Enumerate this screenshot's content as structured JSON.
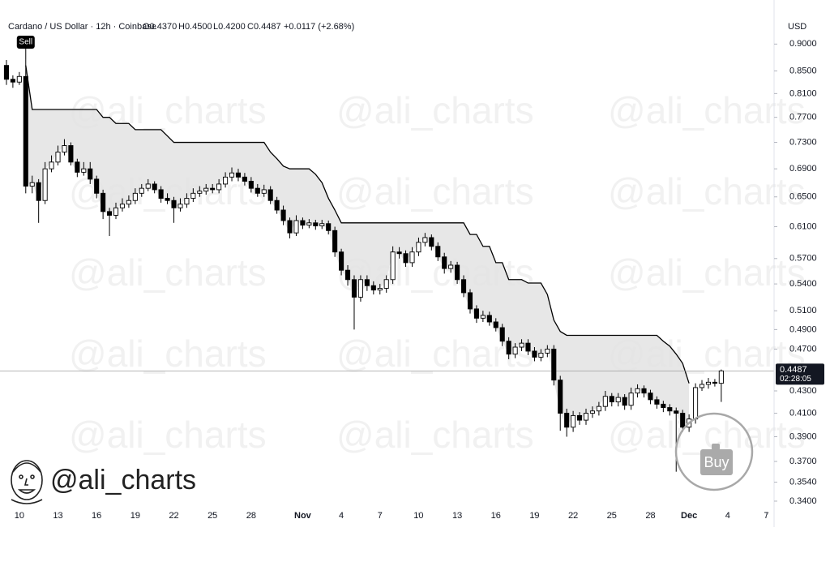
{
  "chart_data": {
    "type": "candlestick",
    "title": "Cardano / US Dollar · 12h · Coinbase",
    "ohlc": [
      "O0.4370",
      "H0.4500",
      "L0.4200",
      "C0.4487"
    ],
    "change": "+0.0117 (+2.68%)",
    "currency": "USD",
    "watermark": "@ali_charts",
    "x": [
      -1,
      -0.5,
      0,
      0.5,
      1,
      1.5,
      2,
      2.5,
      3,
      3.5,
      4,
      4.5,
      5,
      5.5,
      6,
      6.5,
      7,
      7.5,
      8,
      8.5,
      9,
      9.5,
      10,
      10.5,
      11,
      11.5,
      12,
      12.5,
      13,
      13.5,
      14,
      14.5,
      15,
      15.5,
      16,
      16.5,
      17,
      17.5,
      18,
      18.5,
      19,
      19.5,
      20,
      20.5,
      21,
      21.5,
      22,
      22.5,
      23,
      23.5,
      24,
      24.5,
      25,
      25.5,
      26,
      26.5,
      27,
      27.5,
      28,
      28.5,
      29,
      29.5,
      30,
      30.5,
      31,
      31.5,
      32,
      32.5,
      33,
      33.5,
      34,
      34.5,
      35,
      35.5,
      36,
      36.5,
      37,
      37.5,
      38,
      38.5,
      39,
      39.5,
      40,
      40.5,
      41,
      41.5,
      42,
      42.5,
      43,
      43.5,
      44,
      44.5,
      45,
      45.5,
      46,
      46.5,
      47,
      47.5,
      48,
      48.5,
      49,
      49.5,
      50,
      50.5,
      51,
      51.5,
      52,
      52.5,
      53,
      53.5,
      54,
      54.5
    ],
    "open": [
      0.86,
      0.835,
      0.83,
      0.84,
      0.665,
      0.67,
      0.645,
      0.69,
      0.7,
      0.715,
      0.725,
      0.7,
      0.685,
      0.69,
      0.675,
      0.655,
      0.63,
      0.625,
      0.635,
      0.64,
      0.645,
      0.655,
      0.662,
      0.668,
      0.66,
      0.648,
      0.645,
      0.635,
      0.64,
      0.648,
      0.655,
      0.658,
      0.662,
      0.66,
      0.668,
      0.678,
      0.684,
      0.678,
      0.672,
      0.662,
      0.655,
      0.66,
      0.645,
      0.632,
      0.618,
      0.602,
      0.618,
      0.612,
      0.615,
      0.611,
      0.614,
      0.605,
      0.578,
      0.556,
      0.545,
      0.525,
      0.545,
      0.538,
      0.533,
      0.535,
      0.545,
      0.578,
      0.576,
      0.565,
      0.578,
      0.59,
      0.596,
      0.585,
      0.572,
      0.558,
      0.562,
      0.545,
      0.53,
      0.512,
      0.502,
      0.505,
      0.498,
      0.492,
      0.478,
      0.465,
      0.472,
      0.476,
      0.468,
      0.462,
      0.466,
      0.47,
      0.44,
      0.41,
      0.398,
      0.408,
      0.404,
      0.41,
      0.412,
      0.416,
      0.425,
      0.42,
      0.424,
      0.417,
      0.428,
      0.432,
      0.428,
      0.422,
      0.418,
      0.415,
      0.412,
      0.41,
      0.398,
      0.405,
      0.433,
      0.436,
      0.438,
      0.437
    ],
    "high": [
      0.87,
      0.842,
      0.848,
      0.87,
      0.68,
      0.675,
      0.7,
      0.71,
      0.725,
      0.735,
      0.73,
      0.705,
      0.7,
      0.7,
      0.68,
      0.66,
      0.635,
      0.642,
      0.648,
      0.652,
      0.662,
      0.668,
      0.675,
      0.672,
      0.665,
      0.655,
      0.65,
      0.648,
      0.655,
      0.662,
      0.665,
      0.668,
      0.668,
      0.675,
      0.685,
      0.692,
      0.69,
      0.684,
      0.678,
      0.668,
      0.667,
      0.665,
      0.65,
      0.638,
      0.622,
      0.625,
      0.622,
      0.62,
      0.619,
      0.619,
      0.618,
      0.61,
      0.582,
      0.562,
      0.55,
      0.55,
      0.55,
      0.543,
      0.54,
      0.55,
      0.585,
      0.584,
      0.58,
      0.584,
      0.596,
      0.602,
      0.6,
      0.59,
      0.577,
      0.567,
      0.566,
      0.55,
      0.534,
      0.516,
      0.51,
      0.509,
      0.502,
      0.496,
      0.482,
      0.476,
      0.48,
      0.48,
      0.472,
      0.47,
      0.474,
      0.474,
      0.444,
      0.414,
      0.412,
      0.411,
      0.414,
      0.416,
      0.42,
      0.43,
      0.428,
      0.428,
      0.427,
      0.433,
      0.436,
      0.435,
      0.431,
      0.425,
      0.421,
      0.418,
      0.415,
      0.413,
      0.409,
      0.437,
      0.44,
      0.442,
      0.441,
      0.45
    ],
    "low": [
      0.825,
      0.82,
      0.825,
      0.655,
      0.655,
      0.615,
      0.64,
      0.685,
      0.695,
      0.71,
      0.695,
      0.678,
      0.68,
      0.668,
      0.648,
      0.62,
      0.598,
      0.62,
      0.63,
      0.635,
      0.64,
      0.65,
      0.658,
      0.655,
      0.642,
      0.64,
      0.615,
      0.63,
      0.635,
      0.643,
      0.65,
      0.653,
      0.655,
      0.655,
      0.663,
      0.672,
      0.672,
      0.666,
      0.656,
      0.65,
      0.65,
      0.64,
      0.627,
      0.612,
      0.595,
      0.598,
      0.607,
      0.608,
      0.606,
      0.607,
      0.6,
      0.572,
      0.55,
      0.538,
      0.49,
      0.52,
      0.532,
      0.528,
      0.528,
      0.53,
      0.54,
      0.57,
      0.56,
      0.56,
      0.573,
      0.585,
      0.58,
      0.567,
      0.552,
      0.553,
      0.54,
      0.525,
      0.507,
      0.497,
      0.498,
      0.494,
      0.488,
      0.473,
      0.46,
      0.461,
      0.468,
      0.464,
      0.458,
      0.458,
      0.462,
      0.435,
      0.395,
      0.39,
      0.394,
      0.4,
      0.4,
      0.406,
      0.408,
      0.412,
      0.416,
      0.416,
      0.413,
      0.413,
      0.424,
      0.424,
      0.418,
      0.414,
      0.411,
      0.408,
      0.362,
      0.394,
      0.394,
      0.401,
      0.43,
      0.432,
      0.434,
      0.42
    ],
    "close": [
      0.835,
      0.83,
      0.84,
      0.665,
      0.67,
      0.645,
      0.69,
      0.7,
      0.715,
      0.725,
      0.7,
      0.685,
      0.69,
      0.675,
      0.655,
      0.63,
      0.625,
      0.635,
      0.64,
      0.645,
      0.655,
      0.662,
      0.668,
      0.66,
      0.648,
      0.645,
      0.635,
      0.64,
      0.648,
      0.655,
      0.658,
      0.662,
      0.66,
      0.668,
      0.678,
      0.684,
      0.678,
      0.672,
      0.662,
      0.655,
      0.66,
      0.645,
      0.632,
      0.618,
      0.602,
      0.618,
      0.612,
      0.615,
      0.611,
      0.614,
      0.605,
      0.578,
      0.556,
      0.545,
      0.525,
      0.545,
      0.538,
      0.533,
      0.535,
      0.545,
      0.578,
      0.576,
      0.565,
      0.578,
      0.59,
      0.596,
      0.585,
      0.572,
      0.558,
      0.562,
      0.545,
      0.53,
      0.512,
      0.502,
      0.505,
      0.498,
      0.492,
      0.478,
      0.465,
      0.472,
      0.476,
      0.468,
      0.462,
      0.466,
      0.47,
      0.44,
      0.41,
      0.398,
      0.408,
      0.404,
      0.41,
      0.412,
      0.416,
      0.425,
      0.42,
      0.424,
      0.417,
      0.428,
      0.432,
      0.428,
      0.422,
      0.418,
      0.415,
      0.412,
      0.41,
      0.398,
      0.405,
      0.433,
      0.436,
      0.438,
      0.437,
      0.4487
    ],
    "up_color": "#ffffff",
    "down_color": "#000000",
    "supertrend": {
      "color": "#000000",
      "fill": "#e3e3e3",
      "values": [
        null,
        null,
        null,
        0.86,
        0.783,
        0.783,
        0.783,
        0.783,
        0.783,
        0.783,
        0.783,
        0.783,
        0.783,
        0.783,
        0.783,
        0.77,
        0.77,
        0.76,
        0.76,
        0.76,
        0.75,
        0.75,
        0.75,
        0.75,
        0.75,
        0.74,
        0.73,
        0.73,
        0.73,
        0.73,
        0.73,
        0.73,
        0.73,
        0.73,
        0.73,
        0.73,
        0.73,
        0.73,
        0.73,
        0.73,
        0.73,
        0.715,
        0.705,
        0.694,
        0.69,
        0.69,
        0.69,
        0.69,
        0.682,
        0.67,
        0.648,
        0.632,
        0.615,
        0.615,
        0.615,
        0.615,
        0.615,
        0.615,
        0.615,
        0.615,
        0.615,
        0.615,
        0.615,
        0.615,
        0.615,
        0.615,
        0.615,
        0.615,
        0.615,
        0.615,
        0.615,
        0.615,
        0.6,
        0.6,
        0.585,
        0.585,
        0.565,
        0.565,
        0.545,
        0.545,
        0.545,
        0.541,
        0.541,
        0.541,
        0.528,
        0.5,
        0.488,
        0.484,
        0.484,
        0.484,
        0.484,
        0.484,
        0.484,
        0.484,
        0.484,
        0.484,
        0.484,
        0.484,
        0.484,
        0.484,
        0.484,
        0.484,
        0.478,
        0.473,
        0.465,
        0.456,
        0.437,
        null,
        null,
        null,
        null,
        null
      ]
    },
    "signals": {
      "sell": "Sell",
      "buy": "Buy"
    },
    "last_price": 0.4487,
    "countdown": "02:28:05",
    "log_scale": true,
    "grid": false,
    "xlim": [
      -1.5,
      58.6
    ],
    "ylim": [
      0.333,
      0.955
    ],
    "xticks": [
      {
        "value": 0,
        "label": "10"
      },
      {
        "value": 3,
        "label": "13"
      },
      {
        "value": 6,
        "label": "16"
      },
      {
        "value": 9,
        "label": "19"
      },
      {
        "value": 12,
        "label": "22"
      },
      {
        "value": 15,
        "label": "25"
      },
      {
        "value": 18,
        "label": "28"
      },
      {
        "value": 22,
        "label": "Nov"
      },
      {
        "value": 25,
        "label": "4"
      },
      {
        "value": 28,
        "label": "7"
      },
      {
        "value": 31,
        "label": "10"
      },
      {
        "value": 34,
        "label": "13"
      },
      {
        "value": 37,
        "label": "16"
      },
      {
        "value": 40,
        "label": "19"
      },
      {
        "value": 43,
        "label": "22"
      },
      {
        "value": 46,
        "label": "25"
      },
      {
        "value": 49,
        "label": "28"
      },
      {
        "value": 52,
        "label": "Dec"
      },
      {
        "value": 55,
        "label": "4"
      },
      {
        "value": 58,
        "label": "7"
      }
    ],
    "yticks": [
      {
        "value": 0.9,
        "label": "0.9000"
      },
      {
        "value": 0.85,
        "label": "0.8500"
      },
      {
        "value": 0.81,
        "label": "0.8100"
      },
      {
        "value": 0.77,
        "label": "0.7700"
      },
      {
        "value": 0.73,
        "label": "0.7300"
      },
      {
        "value": 0.69,
        "label": "0.6900"
      },
      {
        "value": 0.65,
        "label": "0.6500"
      },
      {
        "value": 0.61,
        "label": "0.6100"
      },
      {
        "value": 0.57,
        "label": "0.5700"
      },
      {
        "value": 0.54,
        "label": "0.5400"
      },
      {
        "value": 0.51,
        "label": "0.5100"
      },
      {
        "value": 0.49,
        "label": "0.4900"
      },
      {
        "value": 0.47,
        "label": "0.4700"
      },
      {
        "value": 0.43,
        "label": "0.4300"
      },
      {
        "value": 0.41,
        "label": "0.4100"
      },
      {
        "value": 0.39,
        "label": "0.3900"
      },
      {
        "value": 0.37,
        "label": "0.3700"
      },
      {
        "value": 0.354,
        "label": "0.3540"
      },
      {
        "value": 0.34,
        "label": "0.3400"
      }
    ]
  }
}
